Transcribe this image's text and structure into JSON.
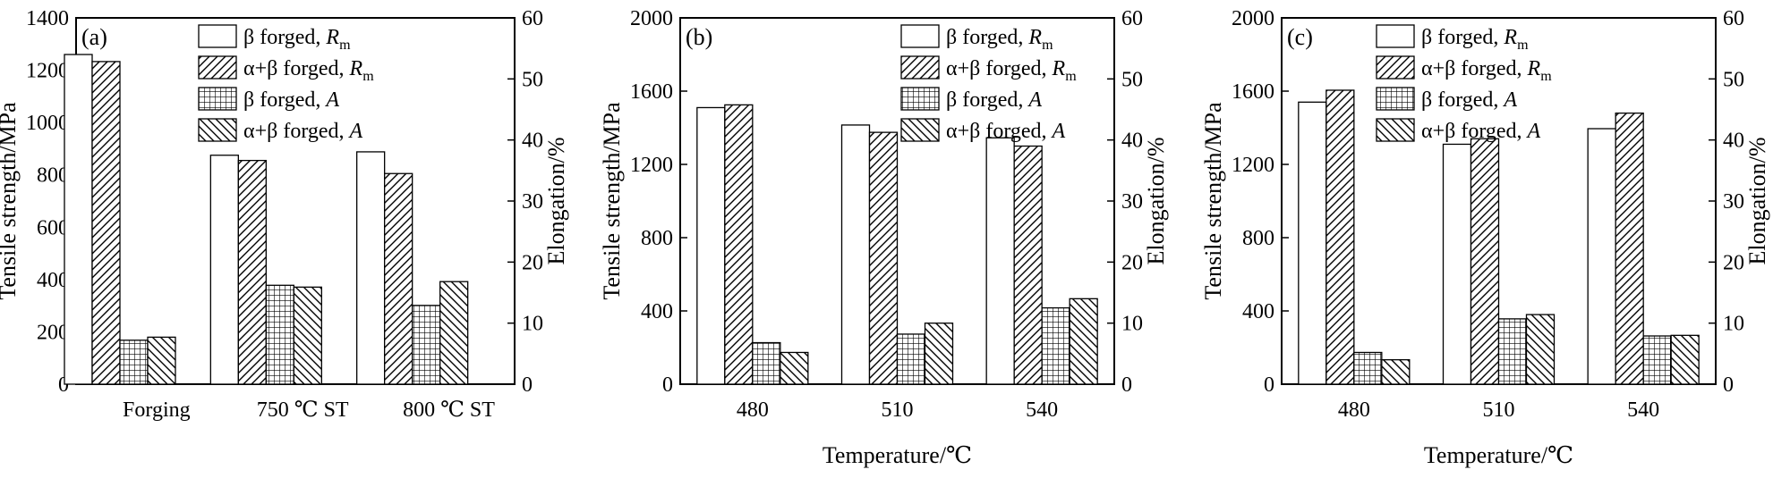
{
  "chart_data": [
    {
      "type": "bar",
      "panel_label": "(a)",
      "categories": [
        "Forging",
        "750 ℃ ST",
        "800 ℃ ST"
      ],
      "xlabel": "",
      "ylabel": "Tensile strength/MPa",
      "y2label": "Elongation/%",
      "ylim": [
        0,
        1400
      ],
      "y2lim": [
        0,
        60
      ],
      "yticks": [
        0,
        200,
        400,
        600,
        800,
        1000,
        1200,
        1400
      ],
      "y2ticks": [
        0,
        10,
        20,
        30,
        40,
        50,
        60
      ],
      "legend_placement": "top-center",
      "series": [
        {
          "name": "β forged, Rm",
          "axis": "left",
          "pattern": "blank",
          "values": [
            1260,
            875,
            888
          ]
        },
        {
          "name": "α+β forged, Rm",
          "axis": "left",
          "pattern": "diagonal-up",
          "values": [
            1233,
            855,
            805
          ]
        },
        {
          "name": "β forged, A",
          "axis": "right",
          "pattern": "grid",
          "values": [
            7.2,
            16.2,
            12.9
          ]
        },
        {
          "name": "α+β forged, A",
          "axis": "right",
          "pattern": "diagonal-down",
          "values": [
            7.7,
            15.9,
            16.8
          ]
        }
      ]
    },
    {
      "type": "bar",
      "panel_label": "(b)",
      "categories": [
        "480",
        "510",
        "540"
      ],
      "xlabel": "Temperature/℃",
      "ylabel": "Tensile strength/MPa",
      "y2label": "Elongation/%",
      "ylim": [
        0,
        2000
      ],
      "y2lim": [
        0,
        60
      ],
      "yticks": [
        0,
        400,
        800,
        1200,
        1600,
        2000
      ],
      "y2ticks": [
        0,
        10,
        20,
        30,
        40,
        50,
        60
      ],
      "legend_placement": "top-right",
      "series": [
        {
          "name": "β forged, Rm",
          "axis": "left",
          "pattern": "blank",
          "values": [
            1510,
            1415,
            1345
          ]
        },
        {
          "name": "α+β forged, Rm",
          "axis": "left",
          "pattern": "diagonal-up",
          "values": [
            1525,
            1375,
            1300
          ]
        },
        {
          "name": "β forged, A",
          "axis": "right",
          "pattern": "grid",
          "values": [
            6.8,
            8.2,
            12.5
          ]
        },
        {
          "name": "α+β forged, A",
          "axis": "right",
          "pattern": "diagonal-down",
          "values": [
            5.2,
            10.0,
            14.0
          ]
        }
      ]
    },
    {
      "type": "bar",
      "panel_label": "(c)",
      "categories": [
        "480",
        "510",
        "540"
      ],
      "xlabel": "Temperature/℃",
      "ylabel": "Tensile strength/MPa",
      "y2label": "Elongation/%",
      "ylim": [
        0,
        2000
      ],
      "y2lim": [
        0,
        60
      ],
      "yticks": [
        0,
        400,
        800,
        1200,
        1600,
        2000
      ],
      "y2ticks": [
        0,
        10,
        20,
        30,
        40,
        50,
        60
      ],
      "legend_placement": "top-right",
      "series": [
        {
          "name": "β forged, Rm",
          "axis": "left",
          "pattern": "blank",
          "values": [
            1540,
            1310,
            1395
          ]
        },
        {
          "name": "α+β forged, Rm",
          "axis": "left",
          "pattern": "diagonal-up",
          "values": [
            1605,
            1340,
            1480
          ]
        },
        {
          "name": "β forged, A",
          "axis": "right",
          "pattern": "grid",
          "values": [
            5.2,
            10.7,
            7.9
          ]
        },
        {
          "name": "α+β forged, A",
          "axis": "right",
          "pattern": "diagonal-down",
          "values": [
            4.0,
            11.4,
            8.0
          ]
        }
      ]
    }
  ]
}
